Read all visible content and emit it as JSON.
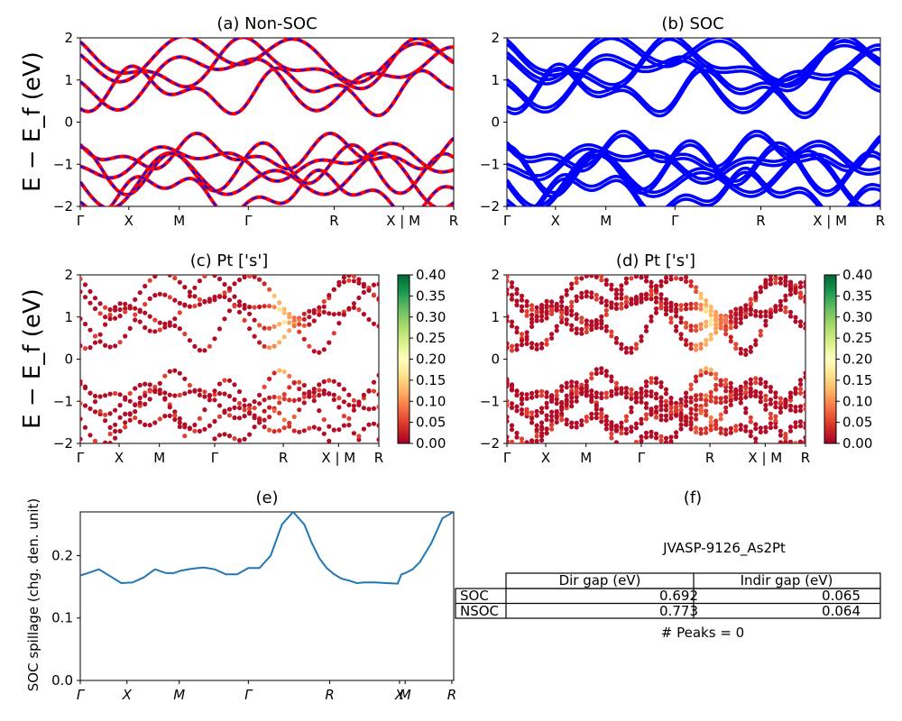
{
  "figure": {
    "ylabel_main": "E − E_f (eV)",
    "table_title": "JVASP-9126_As2Pt",
    "peaks_text": "# Peaks = 0"
  },
  "chart_data": [
    {
      "id": "a",
      "type": "line",
      "title": "(a) Non-SOC",
      "ylim": [
        -2,
        2
      ],
      "yticks": [
        "2",
        "1",
        "0",
        "−1",
        "−2"
      ],
      "xticks": [
        "Γ",
        "X",
        "M",
        "Γ",
        "R",
        "X | M",
        "R"
      ],
      "series": [
        {
          "color": "#ff0000",
          "style": "solid"
        },
        {
          "color": "#0000ff",
          "style": "dashed"
        }
      ]
    },
    {
      "id": "b",
      "type": "line",
      "title": "(b) SOC",
      "ylim": [
        -2,
        2
      ],
      "yticks": [
        "2",
        "1",
        "0",
        "−1",
        "−2"
      ],
      "xticks": [
        "Γ",
        "X",
        "M",
        "Γ",
        "R",
        "X | M",
        "R"
      ],
      "series": [
        {
          "color": "#0000ff",
          "style": "solid"
        }
      ]
    },
    {
      "id": "c",
      "type": "scatter",
      "title": "(c)  Pt ['s']",
      "ylim": [
        -2,
        2
      ],
      "yticks": [
        "2",
        "1",
        "0",
        "−1",
        "−2"
      ],
      "xticks": [
        "Γ",
        "X",
        "M",
        "Γ",
        "R",
        "X | M",
        "R"
      ],
      "colorbar": {
        "range": [
          0.0,
          0.4
        ],
        "ticks": [
          "0.40",
          "0.35",
          "0.30",
          "0.25",
          "0.20",
          "0.15",
          "0.10",
          "0.05",
          "0.00"
        ],
        "cmap": "RdYlGn"
      }
    },
    {
      "id": "d",
      "type": "scatter",
      "title": "(d) Pt ['s']",
      "ylim": [
        -2,
        2
      ],
      "yticks": [
        "2",
        "1",
        "0",
        "−1",
        "−2"
      ],
      "xticks": [
        "Γ",
        "X",
        "M",
        "Γ",
        "R",
        "X | M",
        "R"
      ],
      "colorbar": {
        "range": [
          0.0,
          0.4
        ],
        "ticks": [
          "0.40",
          "0.35",
          "0.30",
          "0.25",
          "0.20",
          "0.15",
          "0.10",
          "0.05",
          "0.00"
        ],
        "cmap": "RdYlGn"
      }
    },
    {
      "id": "e",
      "type": "line",
      "title": "(e)",
      "ylabel": "SOC spillage (chg. den. unit)",
      "ylim": [
        0,
        0.27
      ],
      "yticks": [
        "0.2",
        "0.1",
        "0.0"
      ],
      "xticks": [
        "Γ",
        "X",
        "M",
        "Γ",
        "R",
        "X",
        "M",
        "R"
      ],
      "series": [
        {
          "color": "#1f77b4",
          "x": [
            0,
            0.02,
            0.05,
            0.08,
            0.11,
            0.14,
            0.17,
            0.2,
            0.23,
            0.25,
            0.27,
            0.3,
            0.33,
            0.36,
            0.39,
            0.42,
            0.45,
            0.48,
            0.51,
            0.54,
            0.57,
            0.6,
            0.62,
            0.64,
            0.66,
            0.68,
            0.7,
            0.72,
            0.73,
            0.74,
            0.76,
            0.79,
            0.82,
            0.85,
            0.86,
            0.87,
            0.89,
            0.91,
            0.94,
            0.97,
            1.0
          ],
          "values": [
            0.168,
            0.172,
            0.178,
            0.167,
            0.156,
            0.157,
            0.165,
            0.178,
            0.172,
            0.172,
            0.176,
            0.179,
            0.181,
            0.178,
            0.17,
            0.17,
            0.18,
            0.18,
            0.2,
            0.25,
            0.27,
            0.25,
            0.22,
            0.196,
            0.18,
            0.17,
            0.163,
            0.16,
            0.158,
            0.156,
            0.157,
            0.157,
            0.156,
            0.155,
            0.17,
            0.172,
            0.178,
            0.19,
            0.22,
            0.26,
            0.27
          ]
        }
      ]
    },
    {
      "id": "f",
      "type": "table",
      "title": "(f)",
      "columns": [
        "Dir gap (eV)",
        "Indir gap (eV)"
      ],
      "rows": [
        {
          "label": "SOC",
          "values": [
            "0.692",
            "0.065"
          ]
        },
        {
          "label": "NSOC",
          "values": [
            "0.773",
            "0.064"
          ]
        }
      ]
    }
  ]
}
